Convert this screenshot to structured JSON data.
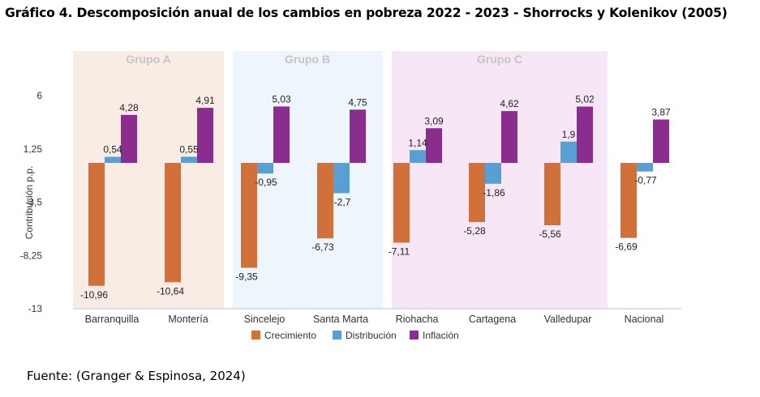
{
  "title": "Gráfico 4. Descomposición anual de los cambios en pobreza 2022 - 2023 - Shorrocks y Kolenikov (2005)",
  "source": "Fuente: (Granger & Espinosa, 2024)",
  "colors": {
    "crecimiento": "#d2703a",
    "distribucion": "#5a9fd4",
    "inflacion": "#8b2d8e",
    "group_a_bg": "#f8ece5",
    "group_b_bg": "#eef5fc",
    "group_c_bg": "#f6e6f6",
    "group_label": "#c5c5c5"
  },
  "groups": [
    {
      "label": "Grupo A",
      "categories": [
        "Barranquilla",
        "Montería"
      ]
    },
    {
      "label": "Grupo B",
      "categories": [
        "Sincelejo",
        "Santa Marta"
      ]
    },
    {
      "label": "Grupo C",
      "categories": [
        "Riohacha",
        "Cartagena",
        "Valledupar"
      ]
    }
  ],
  "chart_data": {
    "type": "bar",
    "title": "Gráfico 4. Descomposición anual de los cambios en pobreza 2022 - 2023 - Shorrocks y Kolenikov (2005)",
    "xlabel": "",
    "ylabel": "Contribución p.p.",
    "ylim": [
      -13,
      6
    ],
    "yticks": [
      6,
      1.25,
      -3.5,
      -8.25,
      -13
    ],
    "ytick_labels": [
      "6",
      "1,25",
      "-3,5",
      "-8,25",
      "-13"
    ],
    "categories": [
      "Barranquilla",
      "Montería",
      "Sincelejo",
      "Santa Marta",
      "Riohacha",
      "Cartagena",
      "Valledupar",
      "Nacional"
    ],
    "series": [
      {
        "name": "Crecimiento",
        "key": "crecimiento",
        "values": [
          -10.96,
          -10.64,
          -9.35,
          -6.73,
          -7.11,
          -5.28,
          -5.56,
          -6.69
        ],
        "labels": [
          "-10,96",
          "-10,64",
          "-9,35",
          "-6,73",
          "-7,11",
          "-5,28",
          "-5,56",
          "-6,69"
        ]
      },
      {
        "name": "Distribución",
        "key": "distribucion",
        "values": [
          0.54,
          0.55,
          -0.95,
          -2.7,
          1.14,
          -1.86,
          1.9,
          -0.77
        ],
        "labels": [
          "0,54",
          "0,55",
          "-0,95",
          "-2,7",
          "1,14",
          "-1,86",
          "1,9",
          "-0,77"
        ]
      },
      {
        "name": "Inflación",
        "key": "inflacion",
        "values": [
          4.28,
          4.91,
          5.03,
          4.75,
          3.09,
          4.62,
          5.02,
          3.87
        ],
        "labels": [
          "4,28",
          "4,91",
          "5,03",
          "4,75",
          "3,09",
          "4,62",
          "5,02",
          "3,87"
        ]
      }
    ],
    "legend": [
      "Crecimiento",
      "Distribución",
      "Inflación"
    ],
    "legend_position": "bottom",
    "grid": false
  }
}
